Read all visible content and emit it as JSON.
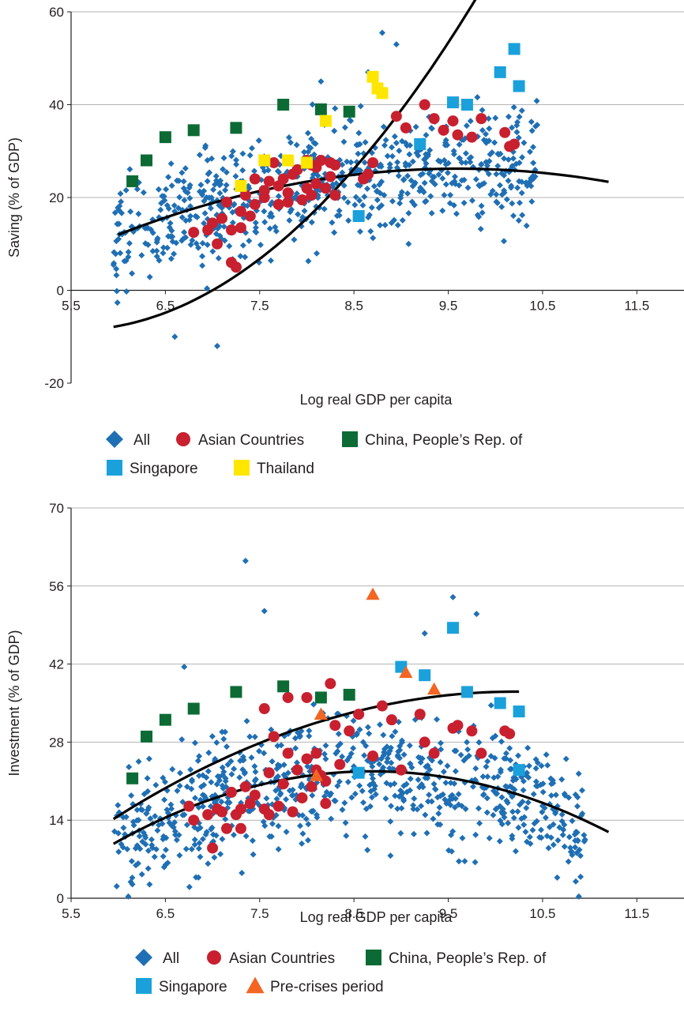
{
  "chart_data": [
    {
      "type": "scatter",
      "title": "",
      "xlabel": "Log real GDP per capita",
      "ylabel": "Saving (% of GDP)",
      "xlim": [
        5.5,
        12
      ],
      "ylim": [
        -20,
        60
      ],
      "x_ticks": [
        "5.5",
        "6.5",
        "7.5",
        "8.5",
        "9.5",
        "10.5",
        "11.5"
      ],
      "y_ticks": [
        "-20",
        "0",
        "20",
        "40",
        "60"
      ],
      "grid": "horizontal",
      "legend_placement": "bottom",
      "legend": [
        {
          "label": "All",
          "marker": "diamond",
          "color": "#1f6fb4"
        },
        {
          "label": "Asian Countries",
          "marker": "circle",
          "color": "#c8202f"
        },
        {
          "label": "China, People’s Rep. of",
          "marker": "square",
          "color": "#0c6b34"
        },
        {
          "label": "Singapore",
          "marker": "square",
          "color": "#1aa1dc"
        },
        {
          "label": "Thailand",
          "marker": "square",
          "color": "#ffe600"
        }
      ],
      "all_cloud": {
        "count": 700,
        "x_range": [
          5.95,
          10.45
        ],
        "trend": {
          "intercept": -73.1,
          "slope": 19.8,
          "quad": -0.975
        },
        "spread": 6.5,
        "outliers": [
          [
            8.8,
            55.5
          ],
          [
            8.95,
            53
          ],
          [
            8.15,
            45
          ],
          [
            8.65,
            47
          ],
          [
            7.05,
            -12
          ],
          [
            6.6,
            -10
          ],
          [
            5.95,
            5.5
          ]
        ]
      },
      "series": [
        {
          "name": "Asian Countries",
          "marker": "circle",
          "color": "#c8202f",
          "points": [
            [
              6.8,
              12.5
            ],
            [
              6.95,
              13
            ],
            [
              7.0,
              14.5
            ],
            [
              7.05,
              10
            ],
            [
              7.1,
              15.5
            ],
            [
              7.15,
              19
            ],
            [
              7.2,
              13
            ],
            [
              7.2,
              6
            ],
            [
              7.25,
              5
            ],
            [
              7.3,
              17
            ],
            [
              7.3,
              13.5
            ],
            [
              7.35,
              20.5
            ],
            [
              7.4,
              16
            ],
            [
              7.45,
              18.5
            ],
            [
              7.45,
              24
            ],
            [
              7.55,
              21.5
            ],
            [
              7.55,
              20
            ],
            [
              7.6,
              23.5
            ],
            [
              7.65,
              27.5
            ],
            [
              7.7,
              22.5
            ],
            [
              7.7,
              18.5
            ],
            [
              7.75,
              24
            ],
            [
              7.8,
              21
            ],
            [
              7.8,
              19
            ],
            [
              7.85,
              25
            ],
            [
              7.9,
              26
            ],
            [
              7.95,
              19.5
            ],
            [
              8.0,
              28
            ],
            [
              8.0,
              22
            ],
            [
              8.05,
              27
            ],
            [
              8.05,
              20.5
            ],
            [
              8.1,
              26.5
            ],
            [
              8.1,
              23
            ],
            [
              8.15,
              28
            ],
            [
              8.2,
              22
            ],
            [
              8.25,
              27.5
            ],
            [
              8.25,
              24.5
            ],
            [
              8.3,
              27
            ],
            [
              8.3,
              20.5
            ],
            [
              8.6,
              24
            ],
            [
              8.65,
              25
            ],
            [
              8.7,
              27.5
            ],
            [
              8.95,
              37.5
            ],
            [
              9.05,
              35
            ],
            [
              9.25,
              40
            ],
            [
              9.35,
              37
            ],
            [
              9.45,
              34.5
            ],
            [
              9.55,
              36.5
            ],
            [
              9.6,
              33.5
            ],
            [
              9.75,
              33
            ],
            [
              9.85,
              37
            ],
            [
              10.1,
              34
            ],
            [
              10.15,
              31
            ],
            [
              10.2,
              31.5
            ]
          ]
        },
        {
          "name": "China, People’s Rep. of",
          "marker": "square",
          "color": "#0c6b34",
          "points": [
            [
              6.15,
              23.5
            ],
            [
              6.3,
              28
            ],
            [
              6.5,
              33
            ],
            [
              6.8,
              34.5
            ],
            [
              7.25,
              35
            ],
            [
              7.75,
              40
            ],
            [
              8.15,
              39
            ],
            [
              8.45,
              38.5
            ]
          ]
        },
        {
          "name": "Singapore",
          "marker": "square",
          "color": "#1aa1dc",
          "points": [
            [
              8.55,
              16
            ],
            [
              9.2,
              31.5
            ],
            [
              9.55,
              40.5
            ],
            [
              9.7,
              40
            ],
            [
              10.05,
              47
            ],
            [
              10.2,
              52
            ],
            [
              10.25,
              44
            ]
          ]
        },
        {
          "name": "Thailand",
          "marker": "square",
          "color": "#ffe600",
          "points": [
            [
              7.3,
              22.5
            ],
            [
              7.55,
              28
            ],
            [
              7.8,
              28
            ],
            [
              8.0,
              27.5
            ],
            [
              8.2,
              36.5
            ],
            [
              8.7,
              46
            ],
            [
              8.75,
              43.5
            ],
            [
              8.8,
              42.5
            ]
          ]
        }
      ],
      "fit_lines": [
        {
          "label": "",
          "x_range": [
            5.95,
            10.25
          ],
          "intercept": 109.9,
          "slope": -43.0,
          "quad": 3.9
        },
        {
          "label": "",
          "x_range": [
            6.0,
            11.2
          ],
          "intercept": -75.07,
          "slope": 21.11,
          "quad": -1.1
        }
      ]
    },
    {
      "type": "scatter",
      "title": "",
      "xlabel": "Log real GDP per capita",
      "ylabel": "Investment (% of GDP)",
      "xlim": [
        5.5,
        12
      ],
      "ylim": [
        0,
        70
      ],
      "x_ticks": [
        "5.5",
        "6.5",
        "7.5",
        "8.5",
        "9.5",
        "10.5",
        "11.5"
      ],
      "y_ticks": [
        "0",
        "14",
        "28",
        "42",
        "56",
        "70"
      ],
      "grid": "horizontal",
      "legend_placement": "bottom",
      "legend": [
        {
          "label": "All",
          "marker": "diamond",
          "color": "#1f6fb4"
        },
        {
          "label": "Asian Countries",
          "marker": "circle",
          "color": "#c8202f"
        },
        {
          "label": "China, People’s Rep. of",
          "marker": "square",
          "color": "#0c6b34"
        },
        {
          "label": "Singapore",
          "marker": "square",
          "color": "#1aa1dc"
        },
        {
          "label": "Pre-crises period",
          "marker": "triangle",
          "color": "#f26522"
        }
      ],
      "all_cloud": {
        "count": 760,
        "x_range": [
          5.95,
          10.95
        ],
        "trend": {
          "intercept": -105.83,
          "slope": 29.49,
          "quad": -1.7
        },
        "spread": 5.5,
        "outliers": [
          [
            7.35,
            60.5
          ],
          [
            7.55,
            51.5
          ],
          [
            9.55,
            54
          ],
          [
            9.8,
            51
          ],
          [
            9.25,
            47.5
          ],
          [
            6.7,
            41.5
          ],
          [
            6.15,
            2.5
          ],
          [
            10.95,
            10.5
          ],
          [
            10.75,
            25
          ]
        ]
      },
      "series": [
        {
          "name": "Asian Countries",
          "marker": "circle",
          "color": "#c8202f",
          "points": [
            [
              6.75,
              16.5
            ],
            [
              6.8,
              14
            ],
            [
              6.95,
              15
            ],
            [
              7.0,
              9
            ],
            [
              7.05,
              16
            ],
            [
              7.1,
              15.5
            ],
            [
              7.15,
              12.5
            ],
            [
              7.2,
              19
            ],
            [
              7.25,
              15
            ],
            [
              7.3,
              16
            ],
            [
              7.3,
              12.5
            ],
            [
              7.35,
              20
            ],
            [
              7.4,
              17
            ],
            [
              7.45,
              18.5
            ],
            [
              7.55,
              16
            ],
            [
              7.6,
              15
            ],
            [
              7.6,
              22.5
            ],
            [
              7.65,
              29
            ],
            [
              7.7,
              16.5
            ],
            [
              7.75,
              20.5
            ],
            [
              7.8,
              36
            ],
            [
              7.8,
              26
            ],
            [
              7.85,
              15.5
            ],
            [
              7.9,
              23
            ],
            [
              7.95,
              18
            ],
            [
              8.0,
              36
            ],
            [
              8.0,
              25
            ],
            [
              8.05,
              20
            ],
            [
              8.1,
              26
            ],
            [
              8.1,
              23
            ],
            [
              8.15,
              22
            ],
            [
              8.2,
              21
            ],
            [
              8.2,
              17
            ],
            [
              8.25,
              38.5
            ],
            [
              8.3,
              31
            ],
            [
              8.35,
              24
            ],
            [
              8.45,
              30
            ],
            [
              8.55,
              33
            ],
            [
              8.7,
              25.5
            ],
            [
              8.8,
              34.5
            ],
            [
              8.9,
              32
            ],
            [
              9.0,
              23
            ],
            [
              9.2,
              33
            ],
            [
              9.25,
              28
            ],
            [
              9.35,
              26
            ],
            [
              9.55,
              30.5
            ],
            [
              9.6,
              31
            ],
            [
              9.75,
              30
            ],
            [
              9.85,
              26
            ],
            [
              10.1,
              30
            ],
            [
              10.15,
              29.5
            ],
            [
              7.55,
              34
            ]
          ]
        },
        {
          "name": "China, People’s Rep. of",
          "marker": "square",
          "color": "#0c6b34",
          "points": [
            [
              6.15,
              21.5
            ],
            [
              6.3,
              29
            ],
            [
              6.5,
              32
            ],
            [
              6.8,
              34
            ],
            [
              7.25,
              37
            ],
            [
              7.75,
              38
            ],
            [
              8.15,
              36
            ],
            [
              8.45,
              36.5
            ]
          ]
        },
        {
          "name": "Singapore",
          "marker": "square",
          "color": "#1aa1dc",
          "points": [
            [
              8.55,
              22.5
            ],
            [
              9.0,
              41.5
            ],
            [
              9.25,
              40
            ],
            [
              9.55,
              48.5
            ],
            [
              9.7,
              37
            ],
            [
              10.05,
              35
            ],
            [
              10.25,
              33.5
            ],
            [
              10.25,
              23
            ]
          ]
        },
        {
          "name": "Pre-crises period",
          "marker": "triangle",
          "color": "#f26522",
          "points": [
            [
              8.7,
              54.5
            ],
            [
              9.05,
              40.5
            ],
            [
              9.35,
              37.5
            ],
            [
              8.15,
              33
            ],
            [
              8.1,
              22
            ]
          ]
        }
      ],
      "fit_lines": [
        {
          "label": "",
          "x_range": [
            5.95,
            10.25
          ],
          "intercept": -94.4,
          "slope": 25.77,
          "quad": -1.263
        },
        {
          "label": "",
          "x_range": [
            5.95,
            11.2
          ],
          "intercept": -107.9,
          "slope": 30.07,
          "quad": -1.73
        }
      ]
    }
  ]
}
